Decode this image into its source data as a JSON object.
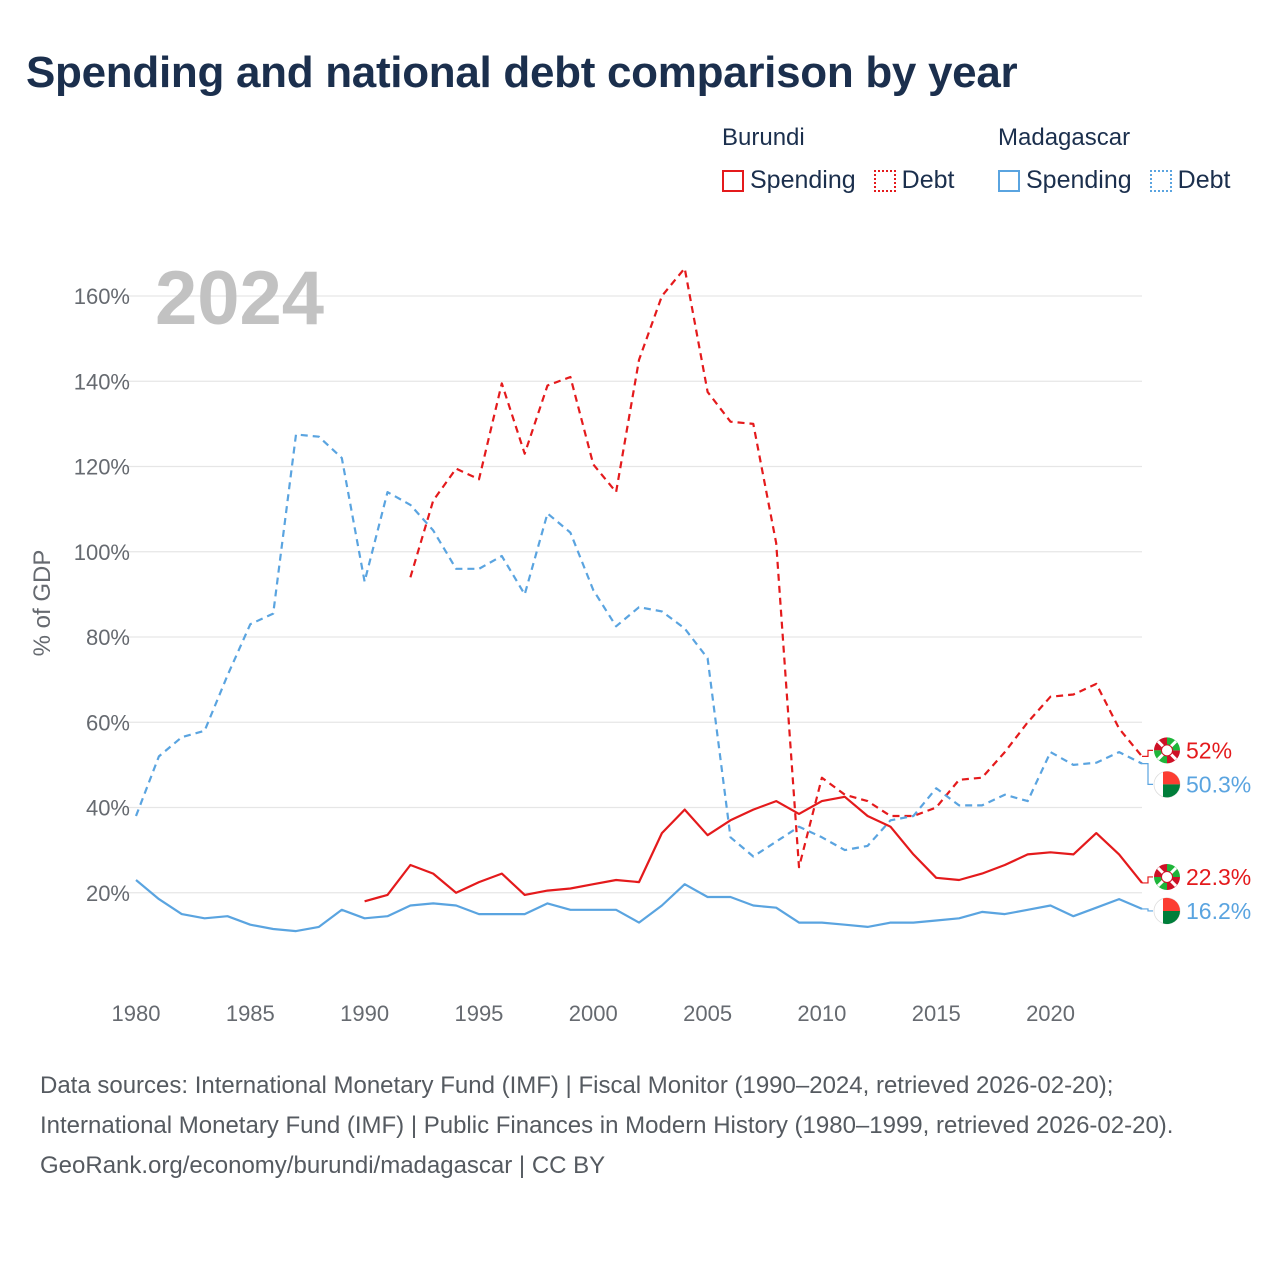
{
  "title": "Spending and national debt comparison by year",
  "legend": {
    "groups": [
      {
        "name": "Burundi",
        "items": [
          "Spending",
          "Debt"
        ],
        "color": "#e41a1c"
      },
      {
        "name": "Madagascar",
        "items": [
          "Spending",
          "Debt"
        ],
        "color": "#5aa4e0"
      }
    ]
  },
  "footer": {
    "sources": "Data sources: International Monetary Fund (IMF) | Fiscal Monitor (1990–2024, retrieved 2026-02-20); International Monetary Fund (IMF) | Public Finances in Modern History (1980–1999, retrieved 2026-02-20).",
    "credit": "GeoRank.org/economy/burundi/madagascar | CC BY"
  },
  "chart_data": {
    "type": "line",
    "year_label": "2024",
    "ylabel": "% of GDP",
    "xlabel": "",
    "xlim": [
      1980,
      2024
    ],
    "ylim": [
      0,
      170
    ],
    "x_ticks": [
      1980,
      1985,
      1990,
      1995,
      2000,
      2005,
      2010,
      2015,
      2020
    ],
    "y_ticks": [
      20,
      40,
      60,
      80,
      100,
      120,
      140,
      160
    ],
    "y_tick_labels": [
      "20%",
      "40%",
      "60%",
      "80%",
      "100%",
      "120%",
      "140%",
      "160%"
    ],
    "grid": true,
    "series": [
      {
        "name": "Burundi Debt",
        "country": "Burundi",
        "metric": "Debt",
        "color": "#e41a1c",
        "dash": "dashed",
        "x": [
          1992,
          1993,
          1994,
          1995,
          1996,
          1997,
          1998,
          1999,
          2000,
          2001,
          2002,
          2003,
          2004,
          2005,
          2006,
          2007,
          2008,
          2009,
          2010,
          2011,
          2012,
          2013,
          2014,
          2015,
          2016,
          2017,
          2018,
          2019,
          2020,
          2021,
          2022,
          2023,
          2024
        ],
        "values": [
          94,
          112,
          119.5,
          117,
          139.5,
          123,
          139,
          141,
          120.5,
          114,
          145,
          160,
          166.5,
          137.5,
          130.5,
          130,
          102,
          26,
          47,
          43,
          41.5,
          38,
          38,
          40,
          46.5,
          47,
          53,
          60,
          66,
          66.5,
          69,
          58.5,
          52
        ],
        "end_label": "52%"
      },
      {
        "name": "Madagascar Debt",
        "country": "Madagascar",
        "metric": "Debt",
        "color": "#5aa4e0",
        "dash": "dashed",
        "x": [
          1980,
          1981,
          1982,
          1983,
          1984,
          1985,
          1986,
          1987,
          1988,
          1989,
          1990,
          1991,
          1992,
          1993,
          1994,
          1995,
          1996,
          1997,
          1998,
          1999,
          2000,
          2001,
          2002,
          2003,
          2004,
          2005,
          2006,
          2007,
          2008,
          2009,
          2010,
          2011,
          2012,
          2013,
          2014,
          2015,
          2016,
          2017,
          2018,
          2019,
          2020,
          2021,
          2022,
          2023,
          2024
        ],
        "values": [
          38,
          52,
          56.5,
          58,
          71,
          83,
          85.5,
          127.5,
          127,
          122,
          93,
          114,
          111,
          105,
          96,
          96,
          99,
          90,
          109,
          104.5,
          91,
          82.5,
          87,
          86,
          82,
          75,
          33,
          28.5,
          32,
          35.5,
          33,
          30,
          31,
          37,
          38,
          44.5,
          40.5,
          40.5,
          43,
          41.5,
          53,
          50,
          50.5,
          53,
          50.3
        ],
        "end_label": "50.3%"
      },
      {
        "name": "Burundi Spending",
        "country": "Burundi",
        "metric": "Spending",
        "color": "#e41a1c",
        "dash": "solid",
        "x": [
          1990,
          1991,
          1992,
          1993,
          1994,
          1995,
          1996,
          1997,
          1998,
          1999,
          2000,
          2001,
          2002,
          2003,
          2004,
          2005,
          2006,
          2007,
          2008,
          2009,
          2010,
          2011,
          2012,
          2013,
          2014,
          2015,
          2016,
          2017,
          2018,
          2019,
          2020,
          2021,
          2022,
          2023,
          2024
        ],
        "values": [
          18,
          19.5,
          26.5,
          24.5,
          20,
          22.5,
          24.5,
          19.5,
          20.5,
          21,
          22,
          23,
          22.5,
          34,
          39.5,
          33.5,
          37,
          39.5,
          41.5,
          38.5,
          41.5,
          42.5,
          38,
          35.5,
          29,
          23.5,
          23,
          24.5,
          26.5,
          29,
          29.5,
          29,
          34,
          29,
          22.3
        ],
        "end_label": "22.3%"
      },
      {
        "name": "Madagascar Spending",
        "country": "Madagascar",
        "metric": "Spending",
        "color": "#5aa4e0",
        "dash": "solid",
        "x": [
          1980,
          1981,
          1982,
          1983,
          1984,
          1985,
          1986,
          1987,
          1988,
          1989,
          1990,
          1991,
          1992,
          1993,
          1994,
          1995,
          1996,
          1997,
          1998,
          1999,
          2000,
          2001,
          2002,
          2003,
          2004,
          2005,
          2006,
          2007,
          2008,
          2009,
          2010,
          2011,
          2012,
          2013,
          2014,
          2015,
          2016,
          2017,
          2018,
          2019,
          2020,
          2021,
          2022,
          2023,
          2024
        ],
        "values": [
          23,
          18.5,
          15,
          14,
          14.5,
          12.5,
          11.5,
          11,
          12,
          16,
          14,
          14.5,
          17,
          17.5,
          17,
          15,
          15,
          15,
          17.5,
          16,
          16,
          16,
          13,
          17,
          22,
          19,
          19,
          17,
          16.5,
          13,
          13,
          12.5,
          12,
          13,
          13,
          13.5,
          14,
          15.5,
          15,
          16,
          17,
          14.5,
          16.5,
          18.5,
          16.2
        ],
        "end_label": "16.2%"
      }
    ]
  }
}
